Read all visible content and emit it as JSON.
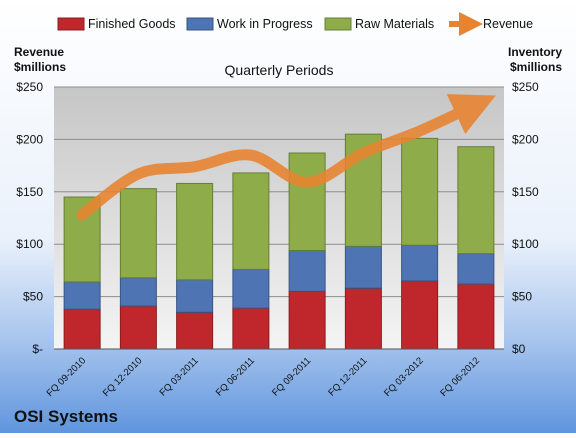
{
  "company": "OSI Systems",
  "colors": {
    "finished_goods": "#c0272d",
    "work_in_progress": "#4f74b3",
    "raw_materials": "#8ead4a",
    "revenue": "#e8832f"
  },
  "chart_data": {
    "type": "bar",
    "subtitle": "Quarterly Periods",
    "left_axis_label": [
      "Revenue",
      "$millions"
    ],
    "right_axis_label": [
      "Inventory",
      "$millions"
    ],
    "ylim": [
      0,
      250
    ],
    "y_ticks": [
      0,
      50,
      100,
      150,
      200,
      250
    ],
    "left_tick_labels": [
      "$-",
      "$50",
      "$100",
      "$150",
      "$200",
      "$250"
    ],
    "right_tick_labels": [
      "$0",
      "$50",
      "$100",
      "$150",
      "$200",
      "$250"
    ],
    "grid": true,
    "legend_position": "top",
    "categories": [
      "FQ 09-2010",
      "FQ 12-2010",
      "FQ 03-2011",
      "FQ 06-2011",
      "FQ 09-2011",
      "FQ 12-2011",
      "FQ 03-2012",
      "FQ 06-2012"
    ],
    "series": [
      {
        "name": "Finished Goods",
        "kind": "stacked-bar",
        "color_key": "finished_goods",
        "values": [
          38,
          41,
          35,
          39,
          55,
          58,
          65,
          62
        ]
      },
      {
        "name": "Work in Progress",
        "kind": "stacked-bar",
        "color_key": "work_in_progress",
        "values": [
          26,
          27,
          31,
          37,
          39,
          40,
          34,
          29
        ]
      },
      {
        "name": "Raw Materials",
        "kind": "stacked-bar",
        "color_key": "raw_materials",
        "values": [
          81,
          85,
          92,
          92,
          93,
          107,
          102,
          102
        ]
      },
      {
        "name": "Revenue",
        "kind": "line",
        "color_key": "revenue",
        "values": [
          128,
          167,
          174,
          185,
          159,
          187,
          208,
          233
        ]
      }
    ]
  }
}
